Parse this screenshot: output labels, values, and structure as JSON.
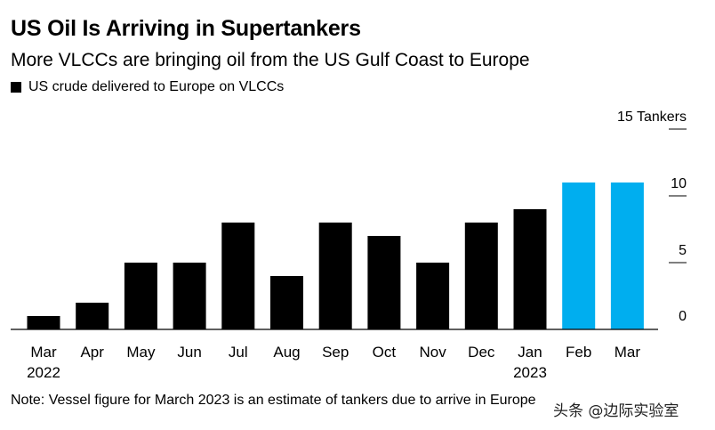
{
  "chart_data": {
    "type": "bar",
    "title": "US Oil Is Arriving in Supertankers",
    "subtitle": "More VLCCs are bringing oil from the US Gulf Coast to Europe",
    "legend": {
      "label": "US crude delivered to Europe on VLCCs",
      "placement": "top-left"
    },
    "categories": [
      {
        "month": "Mar",
        "year": "2022"
      },
      {
        "month": "Apr",
        "year": ""
      },
      {
        "month": "May",
        "year": ""
      },
      {
        "month": "Jun",
        "year": ""
      },
      {
        "month": "Jul",
        "year": ""
      },
      {
        "month": "Aug",
        "year": ""
      },
      {
        "month": "Sep",
        "year": ""
      },
      {
        "month": "Oct",
        "year": ""
      },
      {
        "month": "Nov",
        "year": ""
      },
      {
        "month": "Dec",
        "year": ""
      },
      {
        "month": "Jan",
        "year": "2023"
      },
      {
        "month": "Feb",
        "year": ""
      },
      {
        "month": "Mar",
        "year": ""
      }
    ],
    "values": [
      1,
      2,
      5,
      5,
      8,
      4,
      8,
      7,
      5,
      8,
      9,
      11,
      11
    ],
    "colors": [
      "#000000",
      "#000000",
      "#000000",
      "#000000",
      "#000000",
      "#000000",
      "#000000",
      "#000000",
      "#000000",
      "#000000",
      "#000000",
      "#00AEEF",
      "#00AEEF"
    ],
    "ylim": [
      0,
      15
    ],
    "yticks": [
      {
        "value": 15,
        "label": "15 Tankers"
      },
      {
        "value": 10,
        "label": "10"
      },
      {
        "value": 5,
        "label": "5"
      },
      {
        "value": 0,
        "label": "0"
      }
    ],
    "grid": false
  },
  "note": "Note: Vessel figure for March 2023 is an estimate of tankers due to arrive in Europe",
  "watermark": "头条 @边际实验室"
}
